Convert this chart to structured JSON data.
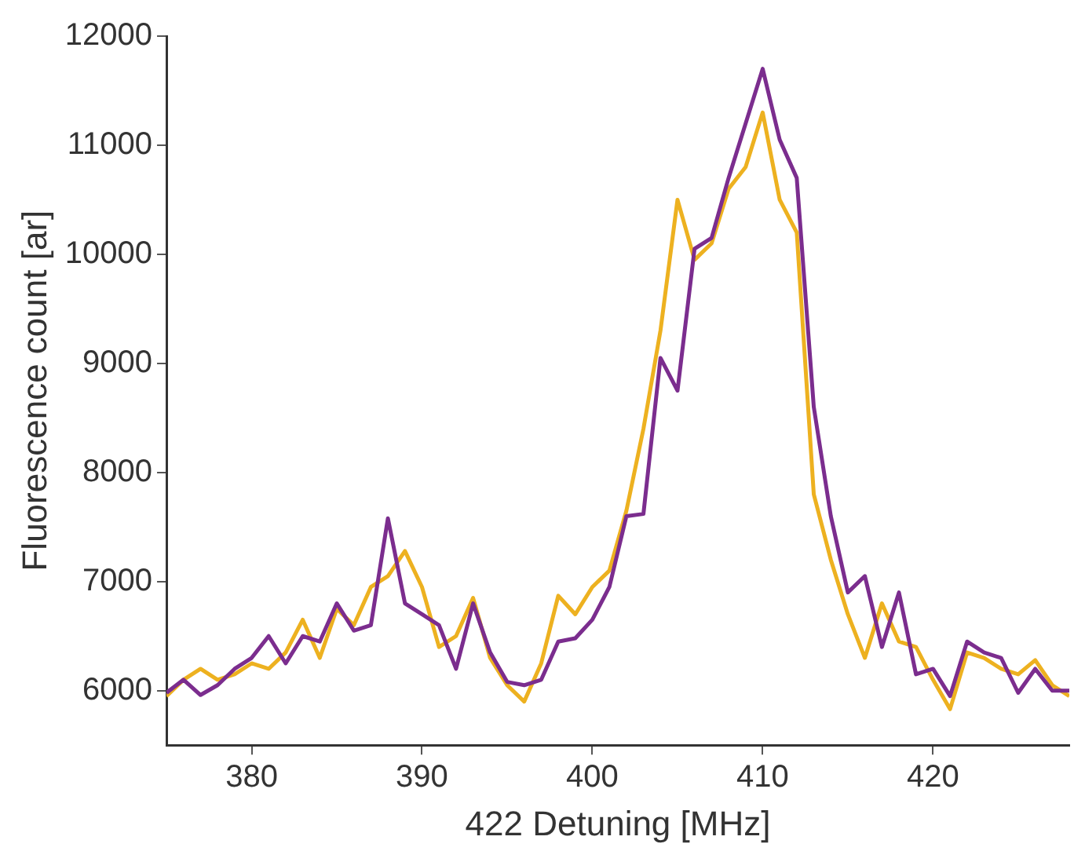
{
  "chart_data": {
    "type": "line",
    "xlabel": "422 Detuning [MHz]",
    "ylabel": "Fluorescence count [ar]",
    "x": [
      375,
      376,
      377,
      378,
      379,
      380,
      381,
      382,
      383,
      384,
      385,
      386,
      387,
      388,
      389,
      390,
      391,
      392,
      393,
      394,
      395,
      396,
      397,
      398,
      399,
      400,
      401,
      402,
      403,
      404,
      405,
      406,
      407,
      408,
      409,
      410,
      411,
      412,
      413,
      414,
      415,
      416,
      417,
      418,
      419,
      420,
      421,
      422,
      423,
      424,
      425,
      426,
      427,
      428
    ],
    "series": [
      {
        "color": "#7b2d8e",
        "values": [
          5980,
          6100,
          5960,
          6050,
          6200,
          6300,
          6500,
          6250,
          6500,
          6450,
          6800,
          6550,
          6600,
          7580,
          6800,
          6700,
          6600,
          6200,
          6800,
          6350,
          6080,
          6050,
          6100,
          6450,
          6480,
          6650,
          6950,
          7600,
          7620,
          9050,
          8750,
          10050,
          10150,
          10700,
          11200,
          11700,
          11050,
          10700,
          8600,
          7600,
          6900,
          7050,
          6400,
          6900,
          6150,
          6200,
          5950,
          6450,
          6350,
          6300,
          5980,
          6200,
          6000,
          6000
        ]
      },
      {
        "color": "#edb120",
        "values": [
          5950,
          6100,
          6200,
          6100,
          6150,
          6250,
          6200,
          6350,
          6650,
          6300,
          6750,
          6600,
          6950,
          7050,
          7280,
          6950,
          6400,
          6500,
          6850,
          6300,
          6050,
          5900,
          6250,
          6870,
          6700,
          6950,
          7100,
          7650,
          8400,
          9300,
          10500,
          9950,
          10100,
          10600,
          10800,
          11300,
          10500,
          10200,
          7800,
          7200,
          6700,
          6300,
          6800,
          6450,
          6400,
          6100,
          5830,
          6350,
          6300,
          6200,
          6150,
          6280,
          6050,
          5950
        ]
      }
    ],
    "xlim": [
      375,
      428
    ],
    "xticks": [
      380,
      390,
      400,
      410,
      420
    ],
    "ylim": [
      5500,
      12000
    ],
    "yticks": [
      6000,
      7000,
      8000,
      9000,
      10000,
      11000,
      12000
    ],
    "grid": false,
    "legend": false,
    "marker": "none",
    "line_style": "solid"
  }
}
